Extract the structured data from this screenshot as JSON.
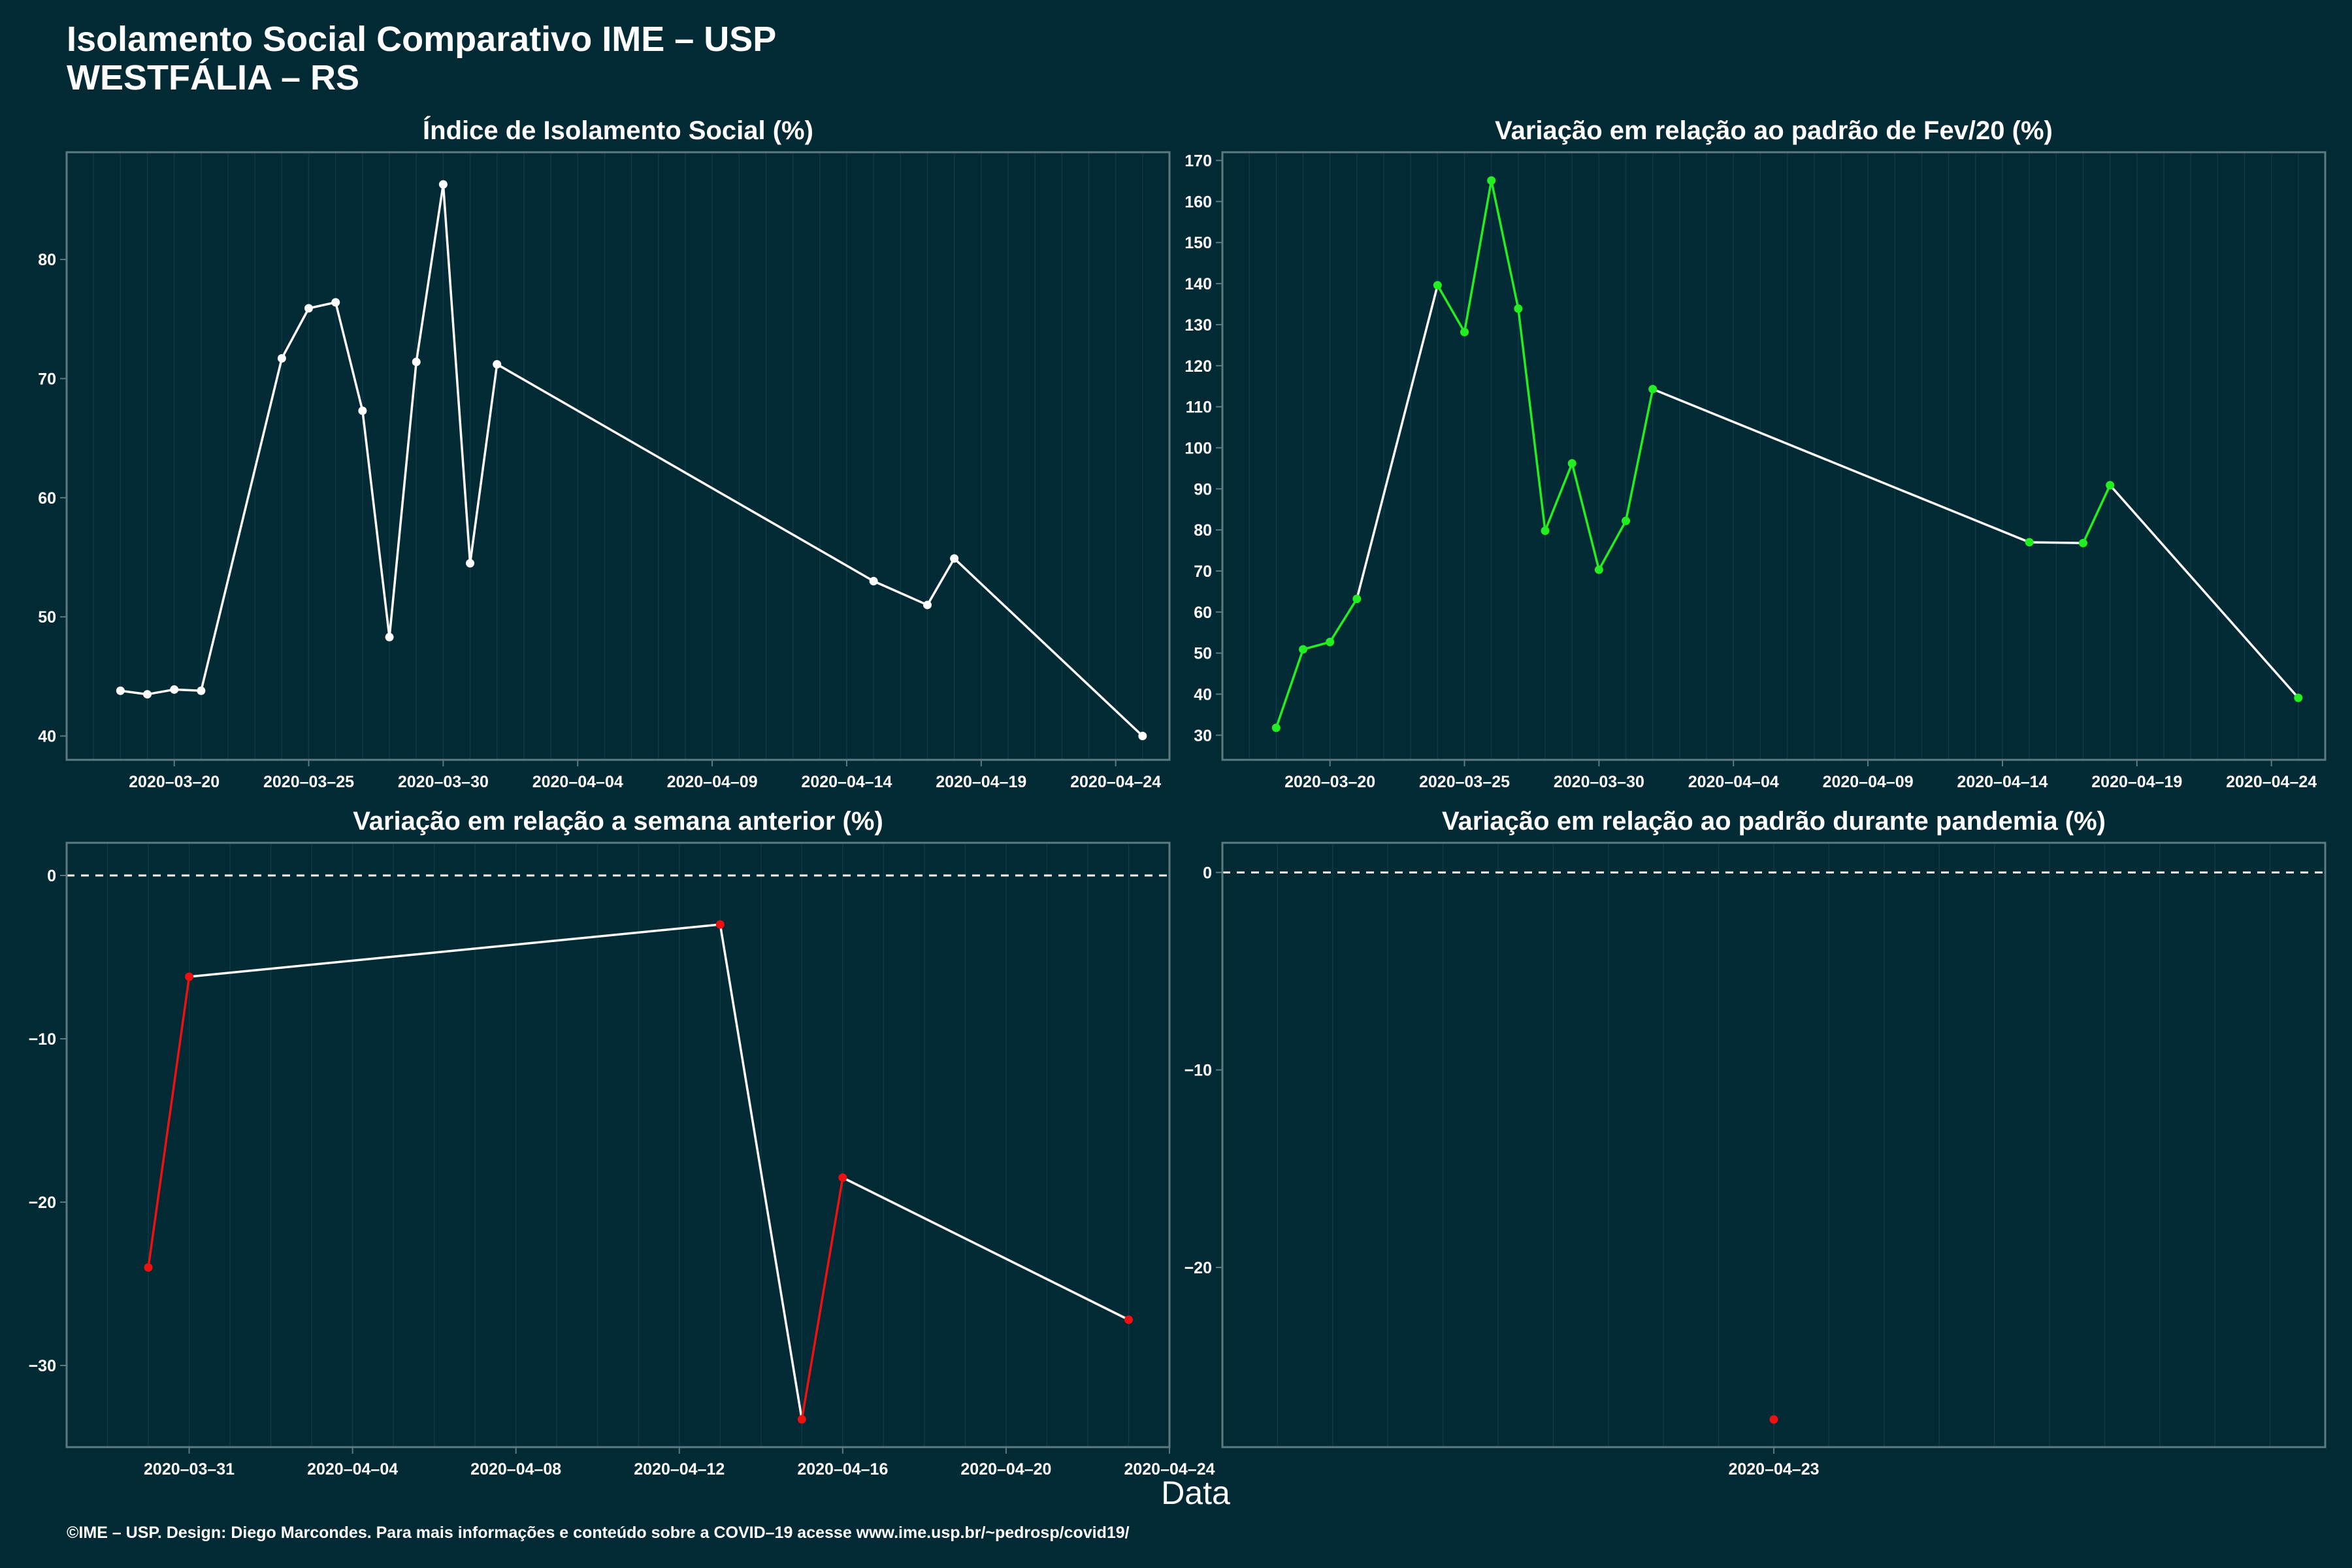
{
  "title_line1": "Isolamento Social Comparativo IME – USP",
  "title_line2": "WESTFÁLIA – RS",
  "xlabel": "Data",
  "footer": "©IME – USP. Design: Diego Marcondes. Para mais informações e conteúdo sobre a COVID–19 acesse www.ime.usp.br/~pedrosp/covid19/",
  "colors": {
    "background": "#022a35",
    "frame": "#5d7a80",
    "grid": "#0d3a46",
    "line": "#ffffff",
    "increase": "#22ee22",
    "decrease": "#ee1111",
    "neutral": "#ffffff"
  },
  "chart_data": [
    {
      "id": "p1",
      "type": "line",
      "title": "Índice de Isolamento Social (%)",
      "xlim": [
        "2020-03-16",
        "2020-04-26"
      ],
      "ylim": [
        38,
        89
      ],
      "x_ticks": [
        "2020-03-20",
        "2020-03-25",
        "2020-03-30",
        "2020-04-04",
        "2020-04-09",
        "2020-04-14",
        "2020-04-19",
        "2020-04-24"
      ],
      "y_ticks": [
        40,
        50,
        60,
        70,
        80
      ],
      "point_color": "neutral",
      "series": [
        {
          "x": [
            "2020-03-18",
            "2020-03-19",
            "2020-03-20",
            "2020-03-21",
            "2020-03-24",
            "2020-03-25",
            "2020-03-26",
            "2020-03-27",
            "2020-03-28",
            "2020-03-29",
            "2020-03-30",
            "2020-03-31",
            "2020-04-01",
            "2020-04-15",
            "2020-04-17",
            "2020-04-18",
            "2020-04-25"
          ],
          "y": [
            43.8,
            43.5,
            43.9,
            43.8,
            71.7,
            75.9,
            76.4,
            67.3,
            48.3,
            71.4,
            86.3,
            54.5,
            71.2,
            53.0,
            51.0,
            54.9,
            40.0
          ]
        }
      ]
    },
    {
      "id": "p2",
      "type": "line",
      "title": "Variação em relação ao padrão de Fev/20 (%)",
      "xlim": [
        "2020-03-16",
        "2020-04-26"
      ],
      "ylim": [
        24,
        172
      ],
      "x_ticks": [
        "2020-03-20",
        "2020-03-25",
        "2020-03-30",
        "2020-04-04",
        "2020-04-09",
        "2020-04-14",
        "2020-04-19",
        "2020-04-24"
      ],
      "y_ticks": [
        30,
        40,
        50,
        60,
        70,
        80,
        90,
        100,
        110,
        120,
        130,
        140,
        150,
        160,
        170
      ],
      "point_color": "increase",
      "series": [
        {
          "x": [
            "2020-03-18",
            "2020-03-19",
            "2020-03-20",
            "2020-03-21",
            "2020-03-24",
            "2020-03-25",
            "2020-03-26",
            "2020-03-27",
            "2020-03-28",
            "2020-03-29",
            "2020-03-30",
            "2020-03-31",
            "2020-04-01",
            "2020-04-15",
            "2020-04-17",
            "2020-04-18",
            "2020-04-25"
          ],
          "y": [
            31.8,
            50.9,
            52.7,
            63.2,
            139.6,
            128.2,
            165.1,
            133.9,
            79.8,
            96.2,
            70.3,
            82.2,
            114.3,
            77.0,
            76.8,
            90.9,
            39.1
          ]
        }
      ]
    },
    {
      "id": "p3",
      "type": "line",
      "title": "Variação em relação a semana anterior (%)",
      "xlim": [
        "2020-03-28",
        "2020-04-24"
      ],
      "ylim": [
        -35,
        2
      ],
      "x_ticks": [
        "2020-03-31",
        "2020-04-04",
        "2020-04-08",
        "2020-04-12",
        "2020-04-16",
        "2020-04-20",
        "2020-04-24"
      ],
      "y_ticks": [
        -30,
        -20,
        -10,
        0
      ],
      "reference_line": 0,
      "point_color": "decrease",
      "series": [
        {
          "x": [
            "2020-03-30",
            "2020-03-31",
            "2020-04-13",
            "2020-04-15",
            "2020-04-16",
            "2020-04-23"
          ],
          "y": [
            -24.0,
            -6.2,
            -3.0,
            -33.3,
            -18.5,
            -27.2
          ]
        }
      ]
    },
    {
      "id": "p4",
      "type": "scatter",
      "title": "Variação em relação ao padrão durante pandemia (%)",
      "xlim": [
        "2020-04-13",
        "2020-05-03"
      ],
      "ylim": [
        -29.1,
        1.5
      ],
      "x_ticks": [
        "2020-04-23"
      ],
      "y_ticks": [
        -20,
        -10,
        0
      ],
      "reference_line": 0,
      "point_color": "decrease",
      "series": [
        {
          "x": [
            "2020-04-23"
          ],
          "y": [
            -27.7
          ]
        }
      ]
    }
  ]
}
